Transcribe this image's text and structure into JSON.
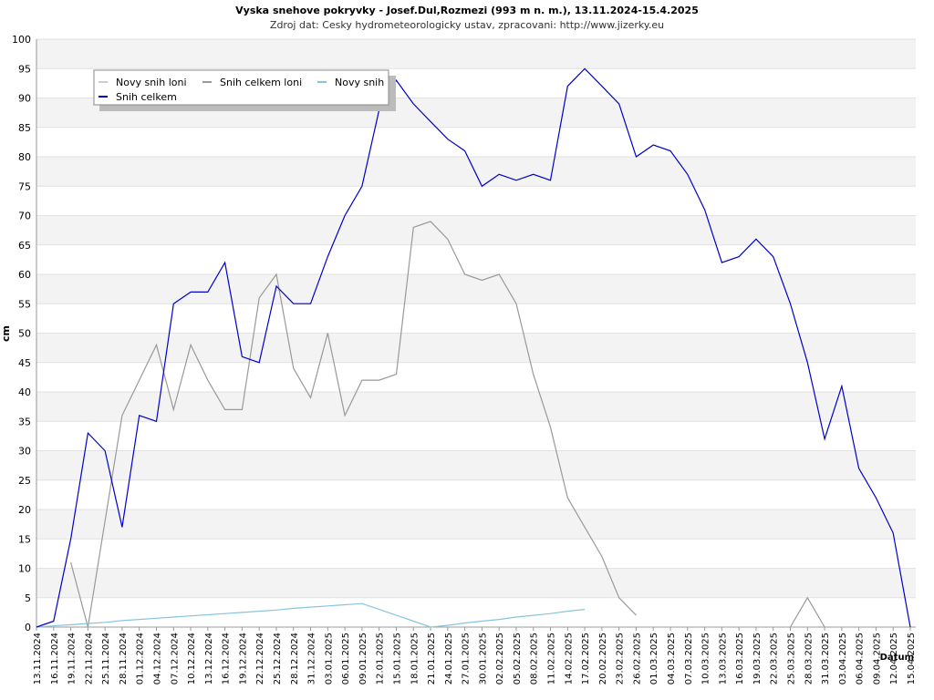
{
  "chart_data": {
    "type": "line",
    "title": "Vyska snehove pokryvky - Josef.Dul,Rozmezi (993 m n. m.), 13.11.2024-15.4.2025",
    "subtitle": "Zdroj dat: Cesky hydrometeorologicky ustav, zpracovani: http://www.jizerky.eu",
    "y_label": "cm",
    "x_label": "Datum",
    "categories": [
      "13.11.2024",
      "16.11.2024",
      "19.11.2024",
      "22.11.2024",
      "25.11.2024",
      "28.11.2024",
      "01.12.2024",
      "04.12.2024",
      "07.12.2024",
      "10.12.2024",
      "13.12.2024",
      "16.12.2024",
      "19.12.2024",
      "22.12.2024",
      "25.12.2024",
      "28.12.2024",
      "31.12.2024",
      "03.01.2025",
      "06.01.2025",
      "09.01.2025",
      "12.01.2025",
      "15.01.2025",
      "18.01.2025",
      "21.01.2025",
      "24.01.2025",
      "27.01.2025",
      "30.01.2025",
      "02.02.2025",
      "05.02.2025",
      "08.02.2025",
      "11.02.2025",
      "14.02.2025",
      "17.02.2025",
      "20.02.2025",
      "23.02.2025",
      "26.02.2025",
      "01.03.2025",
      "04.03.2025",
      "07.03.2025",
      "10.03.2025",
      "13.03.2025",
      "16.03.2025",
      "19.03.2025",
      "22.03.2025",
      "25.03.2025",
      "28.03.2025",
      "31.03.2025",
      "03.04.2025",
      "06.04.2025",
      "09.04.2025",
      "12.04.2025",
      "15.04.2025"
    ],
    "series": [
      {
        "name": "Novy snih loni",
        "color": "#cccccc",
        "values": [
          null,
          null,
          null,
          null,
          null,
          null,
          null,
          null,
          null,
          null,
          null,
          null,
          null,
          null,
          null,
          null,
          null,
          null,
          null,
          null,
          null,
          null,
          null,
          null,
          null,
          null,
          null,
          null,
          null,
          null,
          null,
          null,
          null,
          null,
          null,
          null,
          null,
          null,
          null,
          null,
          null,
          null,
          null,
          null,
          null,
          null,
          null,
          null,
          null,
          null,
          null,
          null
        ]
      },
      {
        "name": "Snih celkem loni",
        "color": "#999999",
        "values": [
          null,
          null,
          11,
          0,
          18,
          36,
          42,
          48,
          37,
          48,
          42,
          37,
          37,
          56,
          60,
          44,
          39,
          50,
          36,
          42,
          42,
          43,
          68,
          69,
          66,
          60,
          59,
          60,
          55,
          43,
          34,
          22,
          17,
          12,
          5,
          2,
          null,
          null,
          null,
          null,
          null,
          null,
          null,
          null,
          0,
          5,
          0,
          null,
          null,
          null,
          null,
          null
        ]
      },
      {
        "name": "Novy snih",
        "color": "#88c4dd",
        "values": [
          0,
          0.2,
          0.4,
          0.6,
          0.8,
          1.1,
          1.3,
          1.5,
          1.7,
          1.9,
          2.1,
          2.3,
          2.5,
          2.7,
          2.9,
          3.2,
          3.4,
          3.6,
          3.8,
          4,
          3,
          2,
          1,
          0,
          0.3,
          0.7,
          1,
          1.3,
          1.7,
          2,
          2.3,
          2.7,
          3,
          null,
          null,
          null,
          null,
          null,
          null,
          null,
          null,
          null,
          null,
          null,
          null,
          null,
          null,
          null,
          null,
          null,
          null,
          null
        ]
      },
      {
        "name": "Snih celkem",
        "color": "#0000cc",
        "values": [
          0,
          1,
          15,
          33,
          30,
          17,
          36,
          35,
          55,
          57,
          57,
          62,
          46,
          45,
          58,
          55,
          55,
          63,
          70,
          75,
          88,
          93,
          89,
          86,
          83,
          81,
          75,
          77,
          76,
          77,
          76,
          92,
          95,
          92,
          89,
          80,
          82,
          81,
          77,
          71,
          62,
          63,
          66,
          63,
          55,
          45,
          32,
          41,
          27,
          22,
          16,
          0
        ]
      }
    ],
    "ylim": [
      0,
      100
    ],
    "yticks": [
      0,
      5,
      10,
      15,
      20,
      25,
      30,
      35,
      40,
      45,
      50,
      55,
      60,
      65,
      70,
      75,
      80,
      85,
      90,
      95,
      100
    ],
    "grid": true,
    "legend": "top-left"
  }
}
